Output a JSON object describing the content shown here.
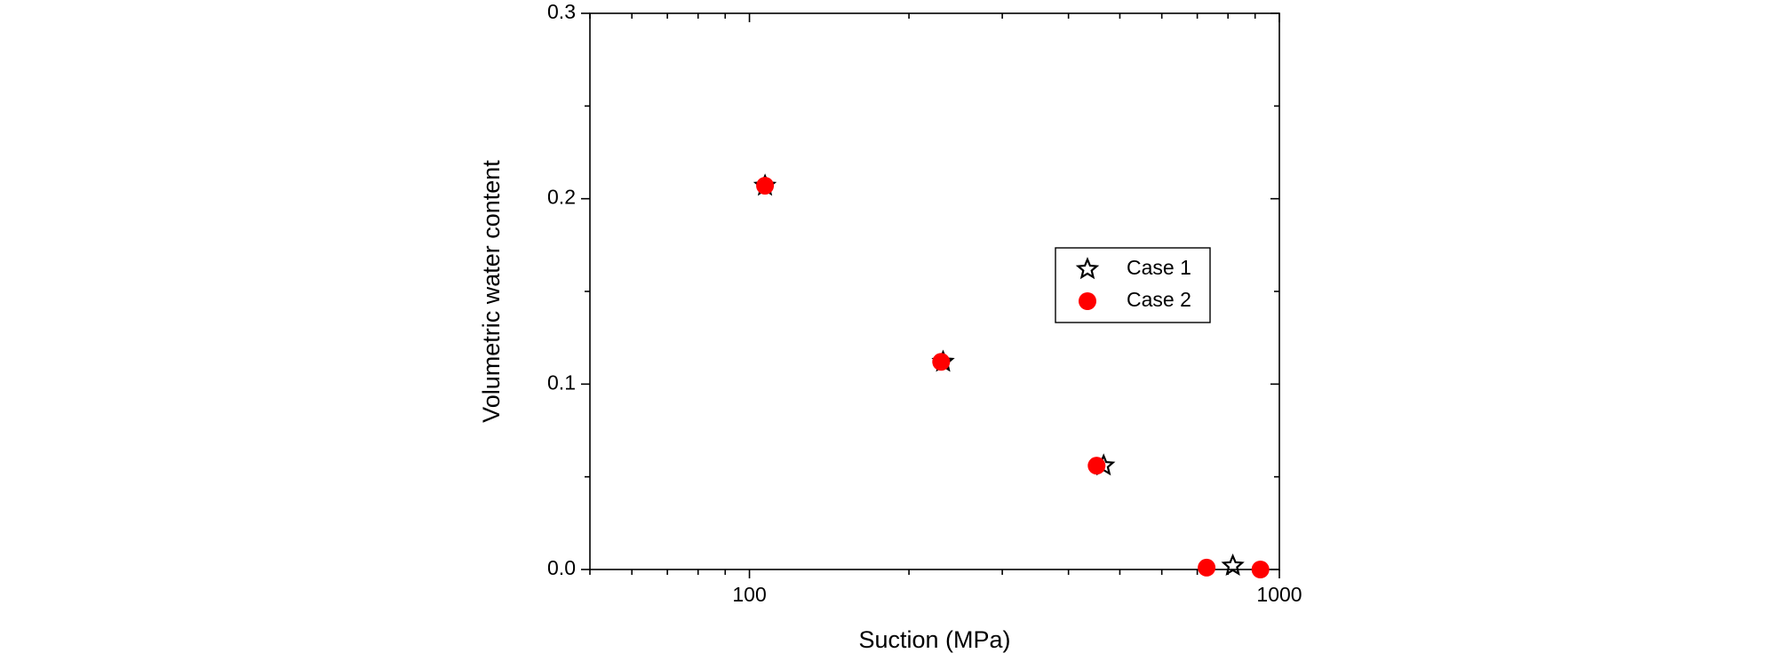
{
  "chart_data": {
    "type": "scatter",
    "x_label": "Suction (MPa)",
    "y_label": "Volumetric water content",
    "x_scale": "log",
    "xlim": [
      50,
      1000
    ],
    "xticks": [
      100,
      1000
    ],
    "ylim": [
      0,
      0.3
    ],
    "yticks": [
      {
        "value": 0,
        "label": "0.0"
      },
      0.1,
      0.2,
      0.3
    ],
    "legend": "right",
    "series": [
      {
        "name": "Case 1",
        "color": "#000000",
        "marker": "star",
        "x": [
          107,
          232,
          466,
          817
        ],
        "values": [
          0.207,
          0.112,
          0.056,
          0.002
        ]
      },
      {
        "name": "Case 2",
        "color": "#ff0000",
        "marker": "circle",
        "x": [
          107,
          230,
          452,
          729,
          921
        ],
        "values": [
          0.207,
          0.112,
          0.056,
          0.001,
          0.0
        ]
      }
    ]
  }
}
